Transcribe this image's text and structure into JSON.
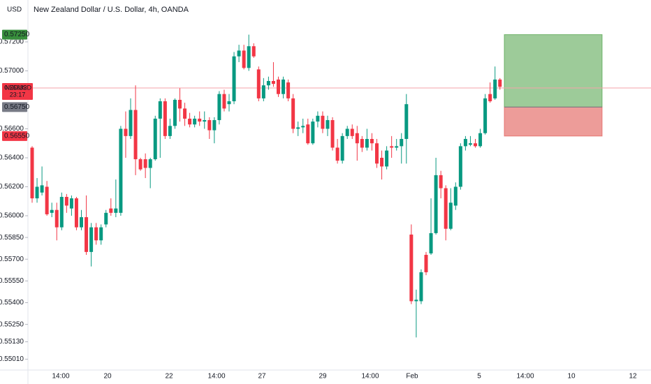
{
  "chart_data": {
    "type": "candlestick",
    "title": "New Zealand Dollar / U.S. Dollar, 4h, OANDA",
    "currency": "USD",
    "symbol": "NZDUSD",
    "countdown": "23:17",
    "up_color": "#089981",
    "down_color": "#f23645",
    "ylim": [
      0.54935,
      0.57489
    ],
    "yticks": [
      {
        "value": 0.572,
        "label": "0.57200"
      },
      {
        "value": 0.57,
        "label": "0.57000"
      },
      {
        "value": 0.566,
        "label": "0.56600"
      },
      {
        "value": 0.564,
        "label": "0.56400"
      },
      {
        "value": 0.562,
        "label": "0.56200"
      },
      {
        "value": 0.56,
        "label": "0.56000"
      },
      {
        "value": 0.5585,
        "label": "0.55850"
      },
      {
        "value": 0.557,
        "label": "0.55700"
      },
      {
        "value": 0.5555,
        "label": "0.55550"
      },
      {
        "value": 0.554,
        "label": "0.55400"
      },
      {
        "value": 0.5525,
        "label": "0.55250"
      },
      {
        "value": 0.5513,
        "label": "0.55130"
      },
      {
        "value": 0.5501,
        "label": "0.55010"
      }
    ],
    "xticks": [
      "14:00",
      "20",
      "22",
      "14:00",
      "27",
      "29",
      "14:00",
      "Feb",
      "5",
      "14:00",
      "10",
      "12"
    ],
    "last_price": {
      "value": 0.56882,
      "label": "0.56882"
    },
    "position": {
      "target": {
        "value": 0.5725,
        "label": "0.57250"
      },
      "entry": {
        "value": 0.5675,
        "label": "0.56750"
      },
      "stop": {
        "value": 0.5655,
        "label": "0.56550"
      }
    },
    "open": [
      0.5647,
      0.5612,
      0.5616,
      0.562,
      0.5602,
      0.5604,
      0.5592,
      0.5613,
      0.5605,
      0.5612,
      0.5592,
      0.5599,
      0.5575,
      0.5592,
      0.5583,
      0.5594,
      0.5605,
      0.5602,
      0.5602,
      0.566,
      0.5655,
      0.5673,
      0.5639,
      0.5639,
      0.5633,
      0.5639,
      0.5667,
      0.5679,
      0.5655,
      0.5662,
      0.568,
      0.5674,
      0.5667,
      0.5663,
      0.5667,
      0.5665,
      0.5666,
      0.5659,
      0.5666,
      0.5684,
      0.5677,
      0.5679,
      0.571,
      0.5714,
      0.5702,
      0.5717,
      0.5701,
      0.5681,
      0.569,
      0.5693,
      0.5694,
      0.5684,
      0.5692,
      0.5681,
      0.566,
      0.5661,
      0.5663,
      0.565,
      0.5665,
      0.5669,
      0.566,
      0.5666,
      0.5647,
      0.5638,
      0.5655,
      0.566,
      0.5657,
      0.5653,
      0.5647,
      0.5653,
      0.565,
      0.564,
      0.5634,
      0.5648,
      0.5647,
      0.5648,
      0.5653,
      0.5587,
      0.5541,
      0.5541,
      0.5573,
      0.5574,
      0.5588,
      0.5628,
      0.5619,
      0.5591,
      0.5607,
      0.562,
      0.5648,
      0.5649,
      0.565,
      0.5648,
      0.5657,
      0.5684,
      0.5681,
      0.5694
    ],
    "high": [
      0.5648,
      0.5626,
      0.5634,
      0.5624,
      0.5609,
      0.5609,
      0.5616,
      0.5615,
      0.5614,
      0.5613,
      0.5604,
      0.5614,
      0.5595,
      0.5595,
      0.5594,
      0.5604,
      0.5612,
      0.5625,
      0.5662,
      0.5672,
      0.5681,
      0.569,
      0.564,
      0.5643,
      0.564,
      0.5669,
      0.5681,
      0.5681,
      0.5667,
      0.5681,
      0.5688,
      0.5678,
      0.5671,
      0.5669,
      0.5672,
      0.5672,
      0.5668,
      0.5668,
      0.5686,
      0.5687,
      0.5684,
      0.5713,
      0.5718,
      0.5718,
      0.5725,
      0.5719,
      0.5703,
      0.5695,
      0.5696,
      0.5706,
      0.5696,
      0.5696,
      0.5694,
      0.5684,
      0.5665,
      0.5667,
      0.5667,
      0.5667,
      0.5672,
      0.5672,
      0.5669,
      0.5668,
      0.5653,
      0.5657,
      0.5662,
      0.5663,
      0.5662,
      0.5655,
      0.566,
      0.5657,
      0.5653,
      0.5645,
      0.5648,
      0.5655,
      0.5653,
      0.5657,
      0.5684,
      0.5594,
      0.5549,
      0.5563,
      0.5575,
      0.5612,
      0.564,
      0.5631,
      0.5621,
      0.5619,
      0.5623,
      0.565,
      0.5655,
      0.5655,
      0.5653,
      0.566,
      0.5684,
      0.5692,
      0.5703,
      0.5695
    ],
    "low": [
      0.5609,
      0.5609,
      0.5614,
      0.56,
      0.5599,
      0.5583,
      0.559,
      0.5602,
      0.56,
      0.559,
      0.559,
      0.5573,
      0.5565,
      0.558,
      0.558,
      0.5592,
      0.56,
      0.5599,
      0.56,
      0.564,
      0.5653,
      0.5628,
      0.5631,
      0.5626,
      0.5619,
      0.5638,
      0.564,
      0.5653,
      0.5653,
      0.566,
      0.5665,
      0.5662,
      0.5661,
      0.5661,
      0.5662,
      0.566,
      0.5653,
      0.565,
      0.5663,
      0.5672,
      0.5672,
      0.5677,
      0.5706,
      0.5701,
      0.57,
      0.5709,
      0.5679,
      0.5679,
      0.5687,
      0.5689,
      0.5682,
      0.5681,
      0.5679,
      0.5657,
      0.5655,
      0.5657,
      0.5649,
      0.5649,
      0.5661,
      0.5657,
      0.5655,
      0.5645,
      0.5636,
      0.5636,
      0.5653,
      0.5653,
      0.5638,
      0.5644,
      0.5645,
      0.5645,
      0.5633,
      0.5625,
      0.5632,
      0.564,
      0.5645,
      0.5636,
      0.5636,
      0.5539,
      0.5516,
      0.5539,
      0.5559,
      0.5573,
      0.5587,
      0.5612,
      0.5583,
      0.559,
      0.5604,
      0.5618,
      0.5645,
      0.5648,
      0.5647,
      0.5647,
      0.5656,
      0.5678,
      0.568,
      0.5687
    ],
    "close": [
      0.5612,
      0.562,
      0.5621,
      0.5601,
      0.5604,
      0.5592,
      0.5613,
      0.5607,
      0.5612,
      0.5592,
      0.5599,
      0.5575,
      0.5592,
      0.5583,
      0.5592,
      0.5602,
      0.5602,
      0.5605,
      0.566,
      0.5655,
      0.5673,
      0.5639,
      0.5632,
      0.5633,
      0.5639,
      0.5667,
      0.5679,
      0.5655,
      0.5662,
      0.568,
      0.5674,
      0.5667,
      0.5663,
      0.5667,
      0.5665,
      0.5666,
      0.5659,
      0.5666,
      0.5684,
      0.5674,
      0.5679,
      0.571,
      0.5714,
      0.5702,
      0.5717,
      0.571,
      0.5681,
      0.569,
      0.5693,
      0.5691,
      0.5684,
      0.5694,
      0.5681,
      0.566,
      0.5661,
      0.5662,
      0.565,
      0.5665,
      0.5669,
      0.566,
      0.5666,
      0.5647,
      0.5638,
      0.5655,
      0.566,
      0.5655,
      0.565,
      0.5647,
      0.5653,
      0.565,
      0.5636,
      0.5634,
      0.5645,
      0.5647,
      0.5648,
      0.5653,
      0.5677,
      0.5541,
      0.5542,
      0.5561,
      0.5561,
      0.5588,
      0.5628,
      0.5619,
      0.5591,
      0.5609,
      0.562,
      0.5648,
      0.5653,
      0.565,
      0.5648,
      0.5657,
      0.5681,
      0.5679,
      0.5694,
      0.5689
    ]
  }
}
